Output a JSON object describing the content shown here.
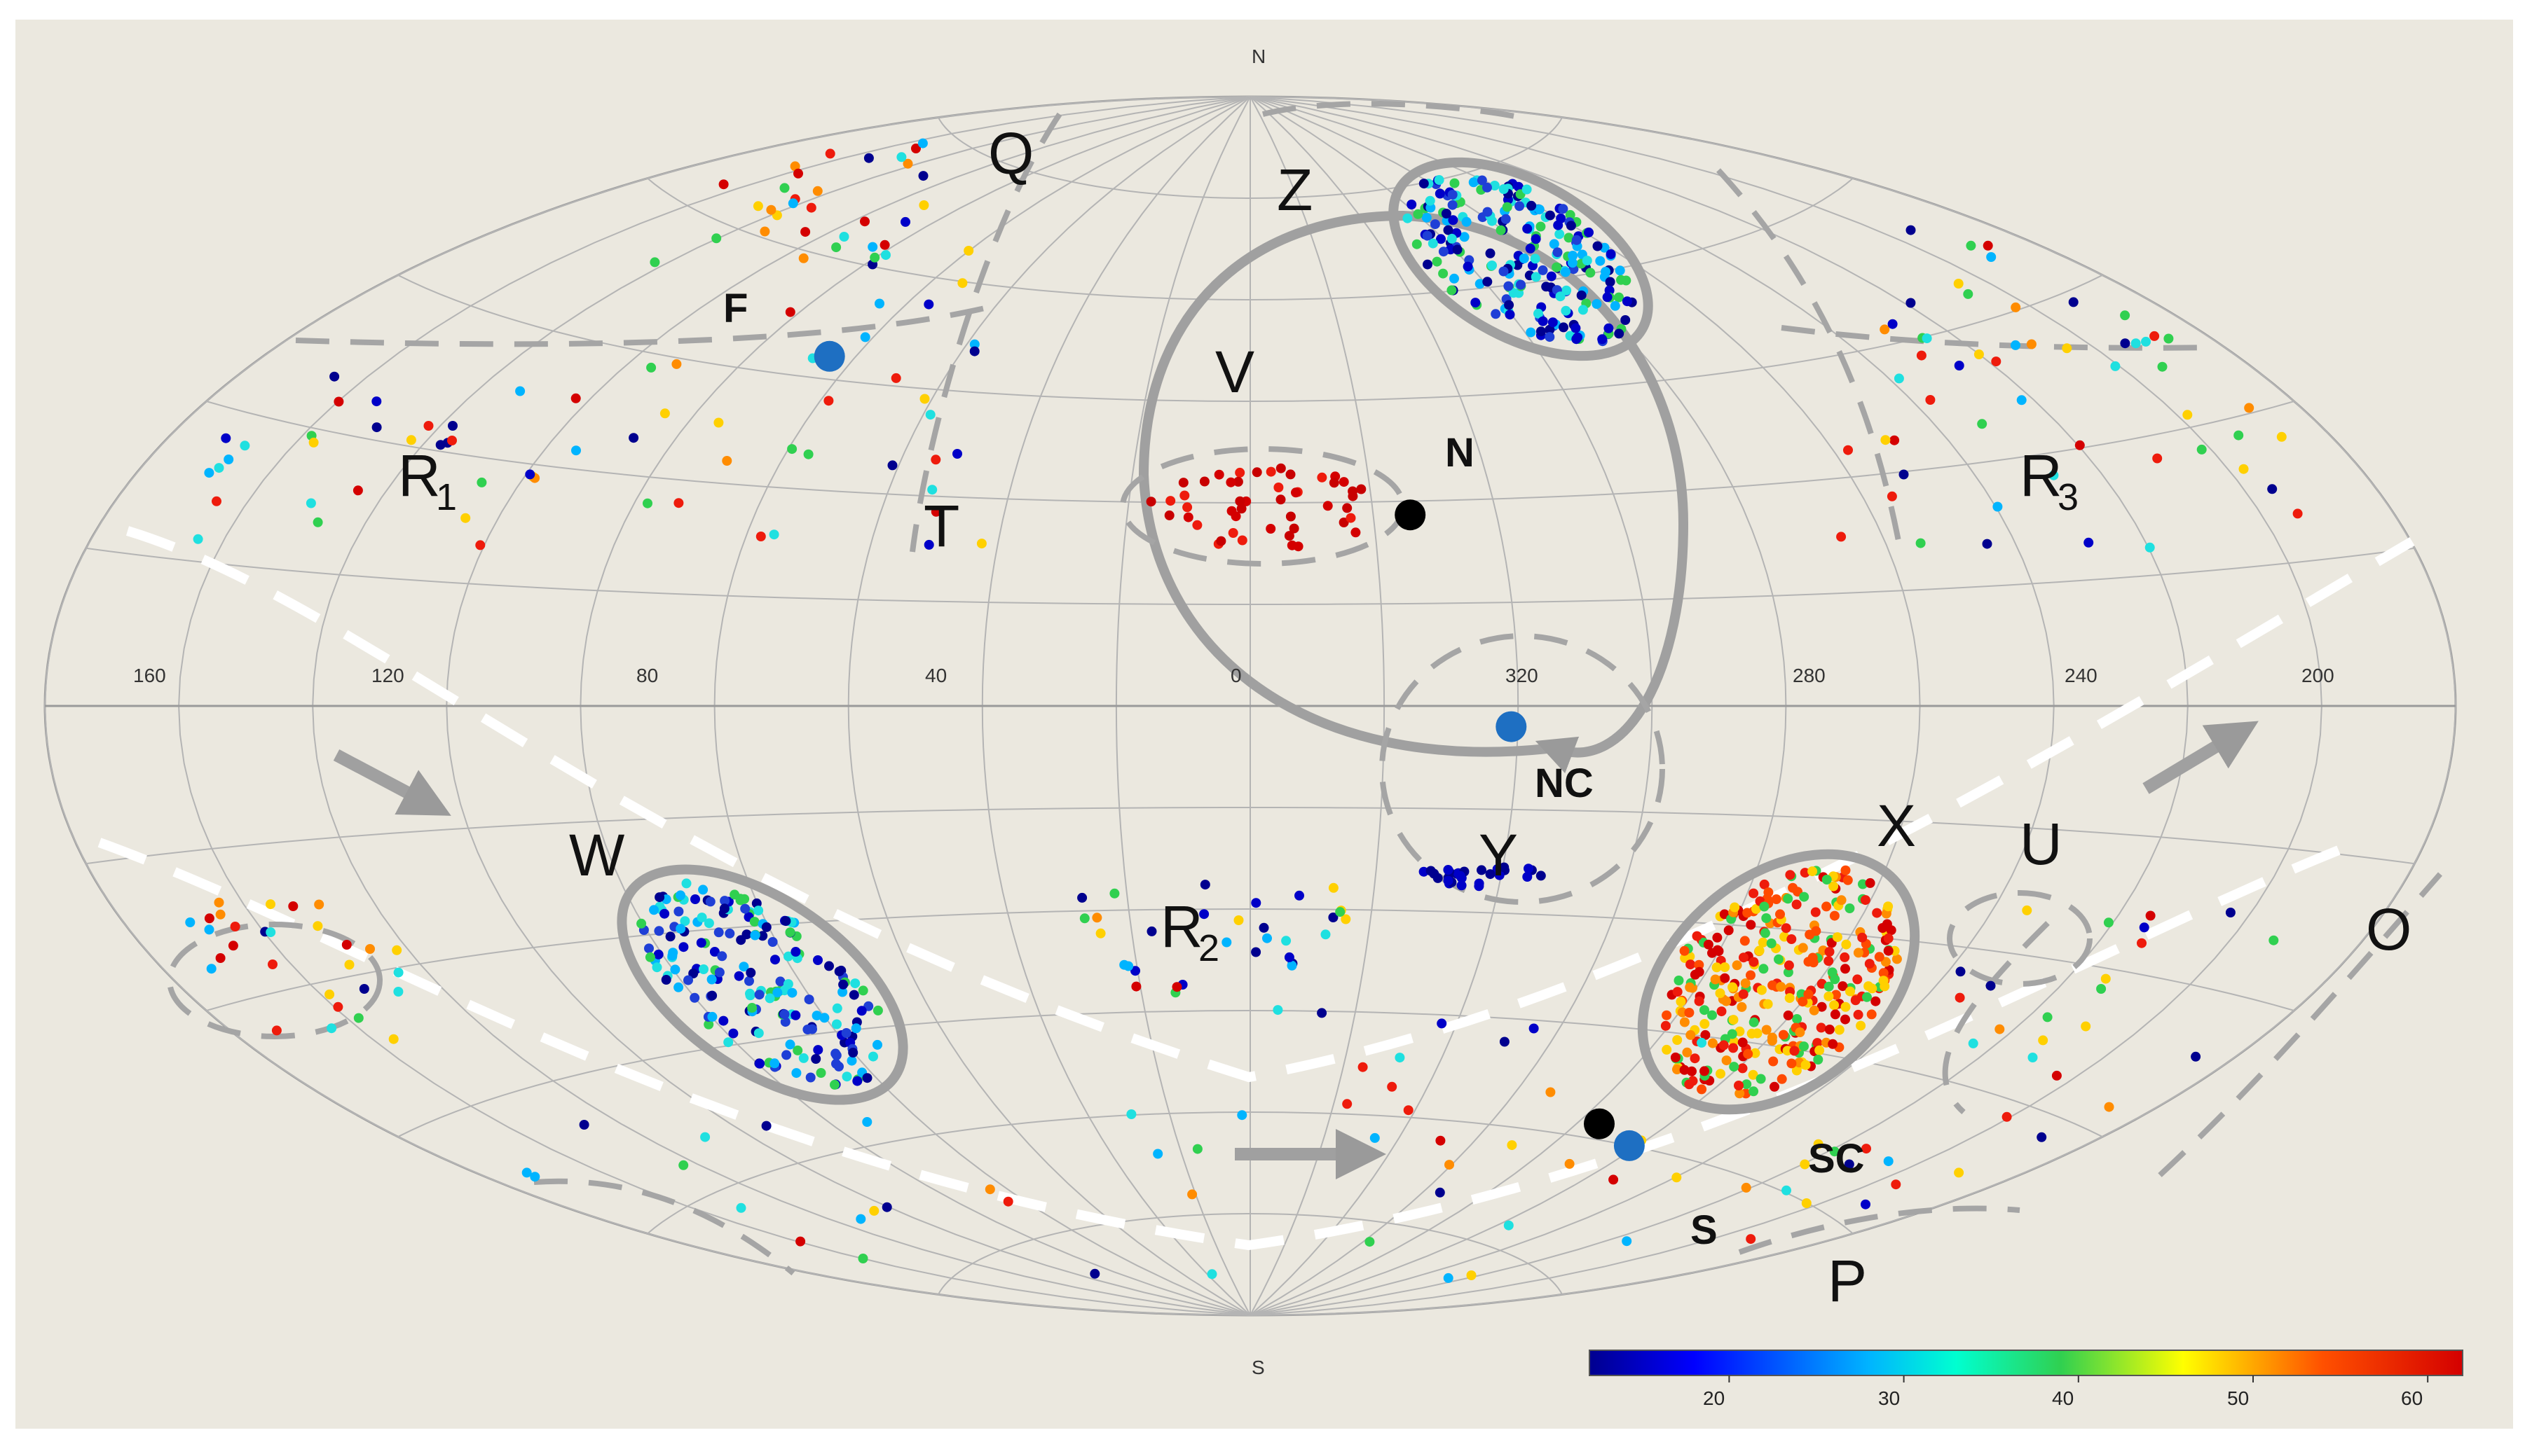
{
  "chart_data": {
    "type": "scatter",
    "projection": "Aitoff all-sky (galactic longitude increasing to the left)",
    "title": "",
    "pole_labels": {
      "north": "N",
      "south": "S"
    },
    "longitude_ticks": [
      "160",
      "120",
      "80",
      "40",
      "0",
      "320",
      "280",
      "240",
      "200"
    ],
    "colorbar": {
      "ticks": [
        "20",
        "30",
        "40",
        "50",
        "60"
      ],
      "range": [
        12,
        62
      ],
      "colormap": "jet"
    },
    "region_labels": {
      "Q": "Q",
      "Z": "Z",
      "F": "F",
      "V": "V",
      "N": "N",
      "R1": "R",
      "R1_sub": "1",
      "T": "T",
      "R3": "R",
      "R3_sub": "3",
      "NC": "NC",
      "W": "W",
      "Y": "Y",
      "X": "X",
      "U": "U",
      "O": "O",
      "R2": "R",
      "R2_sub": "2",
      "S": "S",
      "SC": "SC",
      "P": "P"
    },
    "markers": [
      {
        "label": "F",
        "lon": 85,
        "lat": 48,
        "color": "#1e6fc2"
      },
      {
        "label": "N",
        "lon": 334,
        "lat": 28,
        "color": "#000000"
      },
      {
        "label": "NC",
        "lon": 321,
        "lat": -3,
        "color": "#1e6fc2"
      },
      {
        "label": "S",
        "lon": 275,
        "lat": -58,
        "color": "#000000"
      },
      {
        "label": "SC",
        "lon": 262,
        "lat": -60,
        "color": "#1e6fc2"
      }
    ],
    "clusters": [
      {
        "name": "Z",
        "lon": 340,
        "lat": 68,
        "colors": [
          "#00008f",
          "#0000c8",
          "#1f3fd6",
          "#1fe0e0",
          "#30d050",
          "#00b4ff"
        ]
      },
      {
        "name": "W",
        "lon": 75,
        "lat": -38,
        "colors": [
          "#00008f",
          "#0000c8",
          "#1f3fd6",
          "#1fe0e0",
          "#30d050",
          "#00b4ff"
        ]
      },
      {
        "name": "X",
        "lon": 280,
        "lat": -38,
        "colors": [
          "#d40000",
          "#ee1b0c",
          "#ff4a00",
          "#ff8c00",
          "#ffd000",
          "#30d050"
        ]
      },
      {
        "name": "V",
        "lon": 355,
        "lat": 32,
        "colors": [
          "#d40000",
          "#ee1b0c",
          "#c80000"
        ]
      },
      {
        "name": "Y",
        "lon": 324,
        "lat": -18,
        "colors": [
          "#00008f",
          "#0000c8"
        ]
      }
    ]
  }
}
